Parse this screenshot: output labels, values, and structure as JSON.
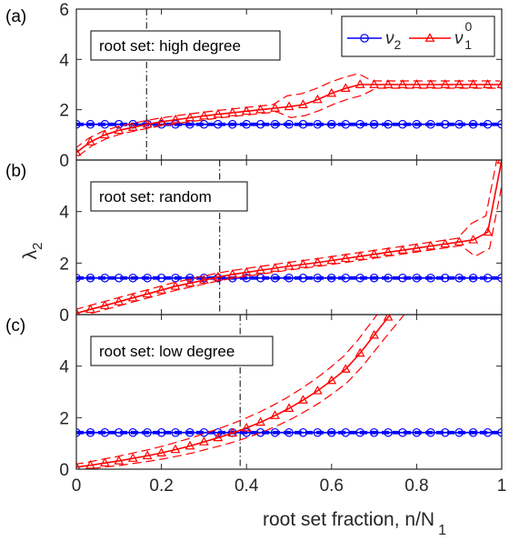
{
  "chart_data": {
    "type": "line",
    "xlabel": "root set fraction, n/N",
    "xlabel_sub": "1",
    "ylabel": "λ",
    "ylabel_sub": "2",
    "xlim": [
      0,
      1
    ],
    "xticks": [
      "0",
      "0.2",
      "0.4",
      "0.6",
      "0.8",
      "1"
    ],
    "legend": {
      "placement": "top-right of panel (a)",
      "entries": [
        {
          "name": "ν",
          "sub": "2",
          "sup": "",
          "color": "#0000ff",
          "marker": "circle"
        },
        {
          "name": "ν",
          "sub": "1",
          "sup": "0",
          "color": "#ff0000",
          "marker": "triangle"
        }
      ]
    },
    "panels": [
      {
        "label": "(a)",
        "annotation": "root set: high degree",
        "ylim": [
          0,
          6
        ],
        "yticks": [
          "0",
          "2",
          "4",
          "6"
        ],
        "vline_x": 0.165,
        "blue": {
          "x": [
            0,
            0.033,
            0.067,
            0.1,
            0.133,
            0.167,
            0.2,
            0.233,
            0.267,
            0.3,
            0.333,
            0.367,
            0.4,
            0.433,
            0.467,
            0.5,
            0.533,
            0.567,
            0.6,
            0.633,
            0.667,
            0.7,
            0.733,
            0.767,
            0.8,
            0.833,
            0.867,
            0.9,
            0.933,
            0.967,
            1.0
          ],
          "y": [
            1.42,
            1.42,
            1.42,
            1.42,
            1.42,
            1.42,
            1.42,
            1.42,
            1.42,
            1.42,
            1.42,
            1.42,
            1.42,
            1.42,
            1.42,
            1.42,
            1.42,
            1.42,
            1.42,
            1.42,
            1.42,
            1.42,
            1.42,
            1.42,
            1.42,
            1.42,
            1.42,
            1.42,
            1.42,
            1.42,
            1.42
          ]
        },
        "red": {
          "x": [
            0,
            0.033,
            0.067,
            0.1,
            0.133,
            0.167,
            0.2,
            0.233,
            0.267,
            0.3,
            0.333,
            0.367,
            0.4,
            0.433,
            0.467,
            0.5,
            0.533,
            0.567,
            0.6,
            0.633,
            0.667,
            0.7,
            0.733,
            0.767,
            0.8,
            0.833,
            0.867,
            0.9,
            0.933,
            0.967,
            1.0
          ],
          "y": [
            0.3,
            0.72,
            1.0,
            1.18,
            1.3,
            1.42,
            1.52,
            1.6,
            1.68,
            1.75,
            1.82,
            1.88,
            1.94,
            2.0,
            2.06,
            2.12,
            2.2,
            2.4,
            2.65,
            2.85,
            3.0,
            3.0,
            3.0,
            3.0,
            3.0,
            3.0,
            3.0,
            3.0,
            3.0,
            3.0,
            3.0
          ]
        }
      },
      {
        "label": "(b)",
        "annotation": "root set: random",
        "ylim": [
          0,
          6
        ],
        "yticks": [
          "0",
          "2",
          "4"
        ],
        "vline_x": 0.337,
        "blue": {
          "x": [
            0,
            0.033,
            0.067,
            0.1,
            0.133,
            0.167,
            0.2,
            0.233,
            0.267,
            0.3,
            0.333,
            0.367,
            0.4,
            0.433,
            0.467,
            0.5,
            0.533,
            0.567,
            0.6,
            0.633,
            0.667,
            0.7,
            0.733,
            0.767,
            0.8,
            0.833,
            0.867,
            0.9,
            0.933,
            0.967,
            1.0
          ],
          "y": [
            1.42,
            1.42,
            1.42,
            1.42,
            1.42,
            1.42,
            1.42,
            1.42,
            1.42,
            1.42,
            1.42,
            1.42,
            1.42,
            1.42,
            1.42,
            1.42,
            1.42,
            1.42,
            1.42,
            1.42,
            1.42,
            1.42,
            1.42,
            1.42,
            1.42,
            1.42,
            1.42,
            1.42,
            1.42,
            1.42,
            1.42
          ]
        },
        "red": {
          "x": [
            0,
            0.033,
            0.067,
            0.1,
            0.133,
            0.167,
            0.2,
            0.233,
            0.267,
            0.3,
            0.333,
            0.367,
            0.4,
            0.433,
            0.467,
            0.5,
            0.533,
            0.567,
            0.6,
            0.633,
            0.667,
            0.7,
            0.733,
            0.767,
            0.8,
            0.833,
            0.867,
            0.9,
            0.933,
            0.967,
            1.0
          ],
          "y": [
            0.05,
            0.2,
            0.35,
            0.5,
            0.65,
            0.8,
            0.95,
            1.1,
            1.22,
            1.34,
            1.46,
            1.56,
            1.64,
            1.72,
            1.8,
            1.88,
            1.95,
            2.02,
            2.1,
            2.18,
            2.26,
            2.34,
            2.42,
            2.5,
            2.58,
            2.66,
            2.74,
            2.82,
            2.9,
            3.2,
            6.0
          ]
        }
      },
      {
        "label": "(c)",
        "annotation": "root set: low degree",
        "ylim": [
          0,
          6
        ],
        "yticks": [
          "0",
          "2",
          "4"
        ],
        "vline_x": 0.385,
        "blue": {
          "x": [
            0,
            0.033,
            0.067,
            0.1,
            0.133,
            0.167,
            0.2,
            0.233,
            0.267,
            0.3,
            0.333,
            0.367,
            0.4,
            0.433,
            0.467,
            0.5,
            0.533,
            0.567,
            0.6,
            0.633,
            0.667,
            0.7,
            0.733,
            0.767,
            0.8,
            0.833,
            0.867,
            0.9,
            0.933,
            0.967,
            1.0
          ],
          "y": [
            1.42,
            1.42,
            1.42,
            1.42,
            1.42,
            1.42,
            1.42,
            1.42,
            1.42,
            1.42,
            1.42,
            1.42,
            1.42,
            1.42,
            1.42,
            1.42,
            1.42,
            1.42,
            1.42,
            1.42,
            1.42,
            1.42,
            1.42,
            1.42,
            1.42,
            1.42,
            1.42,
            1.42,
            1.42,
            1.42,
            1.42
          ]
        },
        "red": {
          "x": [
            0,
            0.033,
            0.067,
            0.1,
            0.133,
            0.167,
            0.2,
            0.233,
            0.267,
            0.3,
            0.333,
            0.367,
            0.4,
            0.433,
            0.467,
            0.5,
            0.533,
            0.567,
            0.6,
            0.633,
            0.667,
            0.7,
            0.733,
            0.767
          ],
          "y": [
            0.08,
            0.15,
            0.24,
            0.32,
            0.42,
            0.52,
            0.63,
            0.76,
            0.9,
            1.06,
            1.22,
            1.4,
            1.6,
            1.82,
            2.08,
            2.36,
            2.68,
            3.04,
            3.44,
            3.88,
            4.5,
            5.2,
            5.9,
            6.6
          ]
        }
      }
    ]
  }
}
